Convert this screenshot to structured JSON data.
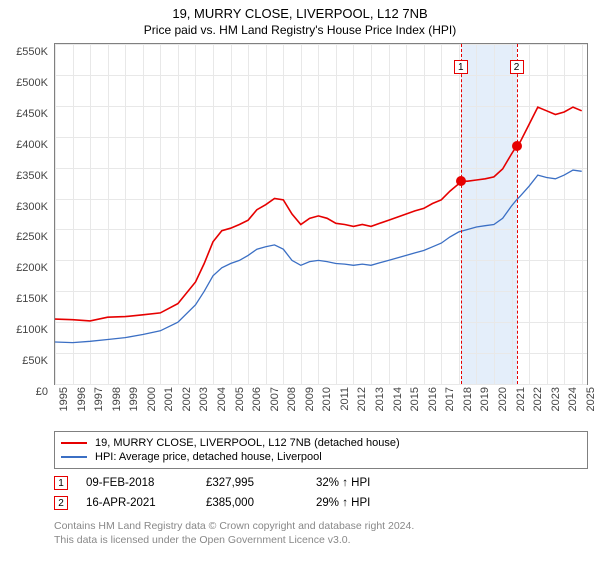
{
  "title": "19, MURRY CLOSE, LIVERPOOL, L12 7NB",
  "subtitle": "Price paid vs. HM Land Registry's House Price Index (HPI)",
  "chart": {
    "type": "line",
    "background_color": "#ffffff",
    "grid_color": "#e8e8e8",
    "border_color": "#808080",
    "highlight_band_color": "#e4eefa",
    "highlight_band": {
      "from": 2018.11,
      "to": 2021.29
    },
    "ylim": [
      0,
      550000
    ],
    "yticks": [
      {
        "v": 0,
        "label": "£0"
      },
      {
        "v": 50000,
        "label": "£50K"
      },
      {
        "v": 100000,
        "label": "£100K"
      },
      {
        "v": 150000,
        "label": "£150K"
      },
      {
        "v": 200000,
        "label": "£200K"
      },
      {
        "v": 250000,
        "label": "£250K"
      },
      {
        "v": 300000,
        "label": "£300K"
      },
      {
        "v": 350000,
        "label": "£350K"
      },
      {
        "v": 400000,
        "label": "£400K"
      },
      {
        "v": 450000,
        "label": "£450K"
      },
      {
        "v": 500000,
        "label": "£500K"
      },
      {
        "v": 550000,
        "label": "£550K"
      }
    ],
    "xlim": [
      1995,
      2025.3
    ],
    "xticks": [
      1995,
      1996,
      1997,
      1998,
      1999,
      2000,
      2001,
      2002,
      2003,
      2004,
      2005,
      2006,
      2007,
      2008,
      2009,
      2010,
      2011,
      2012,
      2013,
      2014,
      2015,
      2016,
      2017,
      2018,
      2019,
      2020,
      2021,
      2022,
      2023,
      2024,
      2025
    ],
    "series": [
      {
        "name": "property",
        "label": "19, MURRY CLOSE, LIVERPOOL, L12 7NB (detached house)",
        "color": "#e60000",
        "width": 1.6,
        "points": [
          [
            1995,
            105000
          ],
          [
            1996,
            104000
          ],
          [
            1997,
            102000
          ],
          [
            1998,
            108000
          ],
          [
            1999,
            109000
          ],
          [
            2000,
            112000
          ],
          [
            2001,
            115000
          ],
          [
            2002,
            130000
          ],
          [
            2003,
            165000
          ],
          [
            2003.5,
            195000
          ],
          [
            2004,
            230000
          ],
          [
            2004.5,
            248000
          ],
          [
            2005,
            252000
          ],
          [
            2005.5,
            258000
          ],
          [
            2006,
            265000
          ],
          [
            2006.5,
            282000
          ],
          [
            2007,
            290000
          ],
          [
            2007.5,
            300000
          ],
          [
            2008,
            298000
          ],
          [
            2008.5,
            275000
          ],
          [
            2009,
            258000
          ],
          [
            2009.5,
            268000
          ],
          [
            2010,
            272000
          ],
          [
            2010.5,
            268000
          ],
          [
            2011,
            260000
          ],
          [
            2011.5,
            258000
          ],
          [
            2012,
            255000
          ],
          [
            2012.5,
            258000
          ],
          [
            2013,
            255000
          ],
          [
            2013.5,
            260000
          ],
          [
            2014,
            265000
          ],
          [
            2014.5,
            270000
          ],
          [
            2015,
            275000
          ],
          [
            2015.5,
            280000
          ],
          [
            2016,
            284000
          ],
          [
            2016.5,
            292000
          ],
          [
            2017,
            298000
          ],
          [
            2017.5,
            312000
          ],
          [
            2018,
            324000
          ],
          [
            2018.11,
            327995
          ],
          [
            2018.5,
            328000
          ],
          [
            2019,
            330000
          ],
          [
            2019.5,
            332000
          ],
          [
            2020,
            335000
          ],
          [
            2020.5,
            348000
          ],
          [
            2021,
            372000
          ],
          [
            2021.29,
            385000
          ],
          [
            2021.5,
            392000
          ],
          [
            2022,
            420000
          ],
          [
            2022.5,
            448000
          ],
          [
            2023,
            442000
          ],
          [
            2023.5,
            436000
          ],
          [
            2024,
            440000
          ],
          [
            2024.5,
            448000
          ],
          [
            2025,
            442000
          ]
        ]
      },
      {
        "name": "hpi",
        "label": "HPI: Average price, detached house, Liverpool",
        "color": "#3b6fc4",
        "width": 1.3,
        "points": [
          [
            1995,
            68000
          ],
          [
            1996,
            67000
          ],
          [
            1997,
            69000
          ],
          [
            1998,
            72000
          ],
          [
            1999,
            75000
          ],
          [
            2000,
            80000
          ],
          [
            2001,
            86000
          ],
          [
            2002,
            100000
          ],
          [
            2003,
            128000
          ],
          [
            2003.5,
            150000
          ],
          [
            2004,
            175000
          ],
          [
            2004.5,
            188000
          ],
          [
            2005,
            195000
          ],
          [
            2005.5,
            200000
          ],
          [
            2006,
            208000
          ],
          [
            2006.5,
            218000
          ],
          [
            2007,
            222000
          ],
          [
            2007.5,
            225000
          ],
          [
            2008,
            218000
          ],
          [
            2008.5,
            200000
          ],
          [
            2009,
            192000
          ],
          [
            2009.5,
            198000
          ],
          [
            2010,
            200000
          ],
          [
            2010.5,
            198000
          ],
          [
            2011,
            195000
          ],
          [
            2011.5,
            194000
          ],
          [
            2012,
            192000
          ],
          [
            2012.5,
            194000
          ],
          [
            2013,
            192000
          ],
          [
            2013.5,
            196000
          ],
          [
            2014,
            200000
          ],
          [
            2014.5,
            204000
          ],
          [
            2015,
            208000
          ],
          [
            2015.5,
            212000
          ],
          [
            2016,
            216000
          ],
          [
            2016.5,
            222000
          ],
          [
            2017,
            228000
          ],
          [
            2017.5,
            238000
          ],
          [
            2018,
            246000
          ],
          [
            2018.5,
            250000
          ],
          [
            2019,
            254000
          ],
          [
            2019.5,
            256000
          ],
          [
            2020,
            258000
          ],
          [
            2020.5,
            268000
          ],
          [
            2021,
            288000
          ],
          [
            2021.29,
            298000
          ],
          [
            2021.5,
            304000
          ],
          [
            2022,
            320000
          ],
          [
            2022.5,
            338000
          ],
          [
            2023,
            334000
          ],
          [
            2023.5,
            332000
          ],
          [
            2024,
            338000
          ],
          [
            2024.5,
            346000
          ],
          [
            2025,
            344000
          ]
        ]
      }
    ],
    "markers": [
      {
        "n": "1",
        "x": 2018.11,
        "y": 327995,
        "color": "#e60000"
      },
      {
        "n": "2",
        "x": 2021.29,
        "y": 385000,
        "color": "#e60000"
      }
    ]
  },
  "legend": {
    "items": [
      {
        "label": "19, MURRY CLOSE, LIVERPOOL, L12 7NB (detached house)",
        "color": "#e60000"
      },
      {
        "label": "HPI: Average price, detached house, Liverpool",
        "color": "#3b6fc4"
      }
    ]
  },
  "events": [
    {
      "n": "1",
      "color": "#e60000",
      "date": "09-FEB-2018",
      "price": "£327,995",
      "diff": "32% ↑ HPI"
    },
    {
      "n": "2",
      "color": "#e60000",
      "date": "16-APR-2021",
      "price": "£385,000",
      "diff": "29% ↑ HPI"
    }
  ],
  "footnote_line1": "Contains HM Land Registry data © Crown copyright and database right 2024.",
  "footnote_line2": "This data is licensed under the Open Government Licence v3.0."
}
